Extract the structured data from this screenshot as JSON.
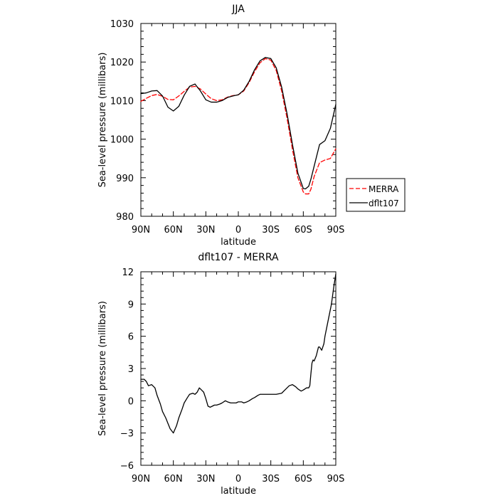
{
  "chart_data": [
    {
      "type": "line",
      "title": "JJA",
      "xlabel": "latitude",
      "ylabel": "Sea-level pressure (millibars)",
      "xlim": [
        90,
        -90
      ],
      "ylim": [
        980,
        1030
      ],
      "x_ticks": [
        90,
        60,
        30,
        0,
        -30,
        -60,
        -90
      ],
      "x_tick_labels": [
        "90N",
        "60N",
        "30N",
        "0",
        "30S",
        "60S",
        "90S"
      ],
      "y_ticks": [
        980,
        990,
        1000,
        1010,
        1020,
        1030
      ],
      "y_tick_labels": [
        "980",
        "990",
        "1000",
        "1010",
        "1020",
        "1030"
      ],
      "grid": false,
      "legend": "right",
      "series": [
        {
          "name": "MERRA",
          "color": "#ff0000",
          "dash": true,
          "x": [
            90,
            85,
            80,
            75,
            70,
            65,
            60,
            55,
            50,
            45,
            40,
            35,
            30,
            25,
            20,
            15,
            10,
            5,
            0,
            -5,
            -10,
            -15,
            -20,
            -25,
            -30,
            -35,
            -40,
            -45,
            -50,
            -55,
            -60,
            -62,
            -65,
            -67,
            -70,
            -75,
            -80,
            -85,
            -90
          ],
          "y": [
            1009.8,
            1010.6,
            1011.3,
            1011.6,
            1011.1,
            1010.3,
            1010.2,
            1011.2,
            1012.4,
            1013.5,
            1013.7,
            1013.0,
            1011.7,
            1010.5,
            1010.0,
            1010.2,
            1010.9,
            1011.3,
            1011.5,
            1012.5,
            1014.7,
            1017.5,
            1019.8,
            1020.9,
            1020.5,
            1017.8,
            1012.5,
            1005.4,
            997.3,
            990.0,
            986.3,
            985.8,
            985.8,
            987.0,
            990.3,
            993.9,
            994.6,
            995.0,
            997.5
          ]
        },
        {
          "name": "dflt107",
          "color": "#000000",
          "dash": false,
          "x": [
            90,
            85,
            80,
            75,
            70,
            65,
            60,
            55,
            50,
            45,
            40,
            35,
            30,
            25,
            20,
            15,
            10,
            5,
            0,
            -5,
            -10,
            -15,
            -20,
            -25,
            -30,
            -35,
            -40,
            -45,
            -50,
            -55,
            -60,
            -62,
            -65,
            -67,
            -70,
            -75,
            -80,
            -85,
            -90
          ],
          "y": [
            1011.8,
            1012.0,
            1012.5,
            1012.6,
            1011.2,
            1008.3,
            1007.3,
            1008.5,
            1011.4,
            1013.7,
            1014.3,
            1012.5,
            1010.2,
            1009.6,
            1009.6,
            1010.0,
            1010.8,
            1011.2,
            1011.5,
            1012.7,
            1015.0,
            1018.0,
            1020.3,
            1021.2,
            1020.9,
            1018.5,
            1013.5,
            1006.6,
            998.6,
            991.2,
            987.2,
            987.1,
            987.8,
            989.6,
            993.0,
            998.6,
            999.6,
            1002.8,
            1009.0
          ]
        }
      ]
    },
    {
      "type": "line",
      "title": "dflt107 - MERRA",
      "xlabel": "latitude",
      "ylabel": "Sea-level pressure (millibars)",
      "xlim": [
        90,
        -90
      ],
      "ylim": [
        -6,
        12
      ],
      "x_ticks": [
        90,
        60,
        30,
        0,
        -30,
        -60,
        -90
      ],
      "x_tick_labels": [
        "90N",
        "60N",
        "30N",
        "0",
        "30S",
        "60S",
        "90S"
      ],
      "y_ticks": [
        -6,
        -3,
        0,
        3,
        6,
        9,
        12
      ],
      "y_tick_labels": [
        "−6",
        "−3",
        "0",
        "3",
        "6",
        "9",
        "12"
      ],
      "grid": false,
      "series": [
        {
          "color": "#000000",
          "dash": false,
          "x": [
            90,
            87,
            85,
            83,
            80,
            77,
            75,
            72,
            70,
            67,
            65,
            63,
            60,
            57,
            55,
            52,
            50,
            47,
            45,
            42,
            40,
            38,
            36,
            34,
            32,
            30,
            28,
            26,
            24,
            22,
            20,
            17,
            15,
            12,
            10,
            7,
            5,
            2,
            0,
            -3,
            -5,
            -8,
            -10,
            -13,
            -15,
            -18,
            -20,
            -25,
            -30,
            -35,
            -40,
            -43,
            -45,
            -47,
            -50,
            -53,
            -55,
            -58,
            -60,
            -63,
            -65,
            -66,
            -67,
            -68,
            -69,
            -70,
            -72,
            -74,
            -75,
            -77,
            -79,
            -80,
            -82,
            -84,
            -86,
            -88,
            -90
          ],
          "y": [
            2.0,
            2.0,
            1.8,
            1.4,
            1.5,
            1.2,
            0.5,
            -0.3,
            -1.0,
            -1.6,
            -2.1,
            -2.6,
            -3.0,
            -2.3,
            -1.6,
            -0.8,
            -0.2,
            0.3,
            0.6,
            0.7,
            0.6,
            0.8,
            1.2,
            1.0,
            0.8,
            0.2,
            -0.5,
            -0.6,
            -0.5,
            -0.4,
            -0.4,
            -0.3,
            -0.2,
            0.0,
            -0.1,
            -0.2,
            -0.2,
            -0.2,
            -0.1,
            -0.1,
            -0.2,
            -0.1,
            0.0,
            0.2,
            0.3,
            0.5,
            0.6,
            0.6,
            0.6,
            0.6,
            0.7,
            1.0,
            1.2,
            1.4,
            1.5,
            1.3,
            1.1,
            0.9,
            1.0,
            1.2,
            1.2,
            1.4,
            2.5,
            3.5,
            3.8,
            3.7,
            4.2,
            5.0,
            5.0,
            4.7,
            5.3,
            6.0,
            7.0,
            8.0,
            9.0,
            10.5,
            11.8
          ]
        }
      ]
    }
  ]
}
